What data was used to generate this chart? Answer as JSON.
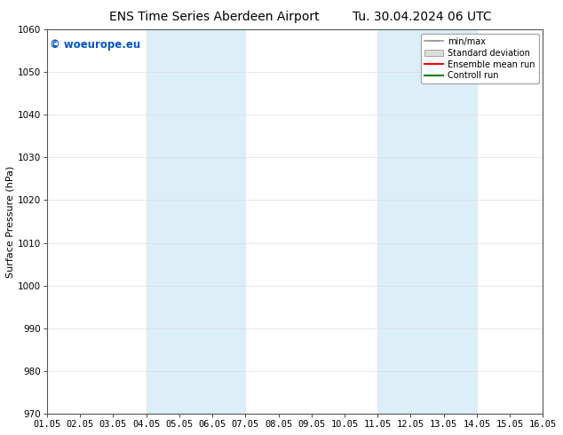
{
  "title_left": "ENS Time Series Aberdeen Airport",
  "title_right": "Tu. 30.04.2024 06 UTC",
  "ylabel": "Surface Pressure (hPa)",
  "ylim": [
    970,
    1060
  ],
  "yticks": [
    970,
    980,
    990,
    1000,
    1010,
    1020,
    1030,
    1040,
    1050,
    1060
  ],
  "xlim_start": 0,
  "xlim_end": 15,
  "xtick_labels": [
    "01.05",
    "02.05",
    "03.05",
    "04.05",
    "05.05",
    "06.05",
    "07.05",
    "08.05",
    "09.05",
    "10.05",
    "11.05",
    "12.05",
    "13.05",
    "14.05",
    "15.05",
    "16.05"
  ],
  "shaded_regions": [
    {
      "xstart": 3,
      "xend": 6,
      "color": "#dceef8"
    },
    {
      "xstart": 10,
      "xend": 13,
      "color": "#dceef8"
    }
  ],
  "watermark": "© woeurope.eu",
  "watermark_color": "#0055cc",
  "legend_items": [
    {
      "label": "min/max",
      "color": "#aaaaaa",
      "style": "line_with_caps"
    },
    {
      "label": "Standard deviation",
      "color": "#cccccc",
      "style": "filled_box"
    },
    {
      "label": "Ensemble mean run",
      "color": "#ff0000",
      "style": "line"
    },
    {
      "label": "Controll run",
      "color": "#008000",
      "style": "line"
    }
  ],
  "background_color": "#ffffff",
  "plot_bg_color": "#ffffff",
  "grid_color": "#dddddd",
  "title_fontsize": 10,
  "axis_label_fontsize": 8,
  "tick_fontsize": 7.5,
  "legend_fontsize": 7.0
}
